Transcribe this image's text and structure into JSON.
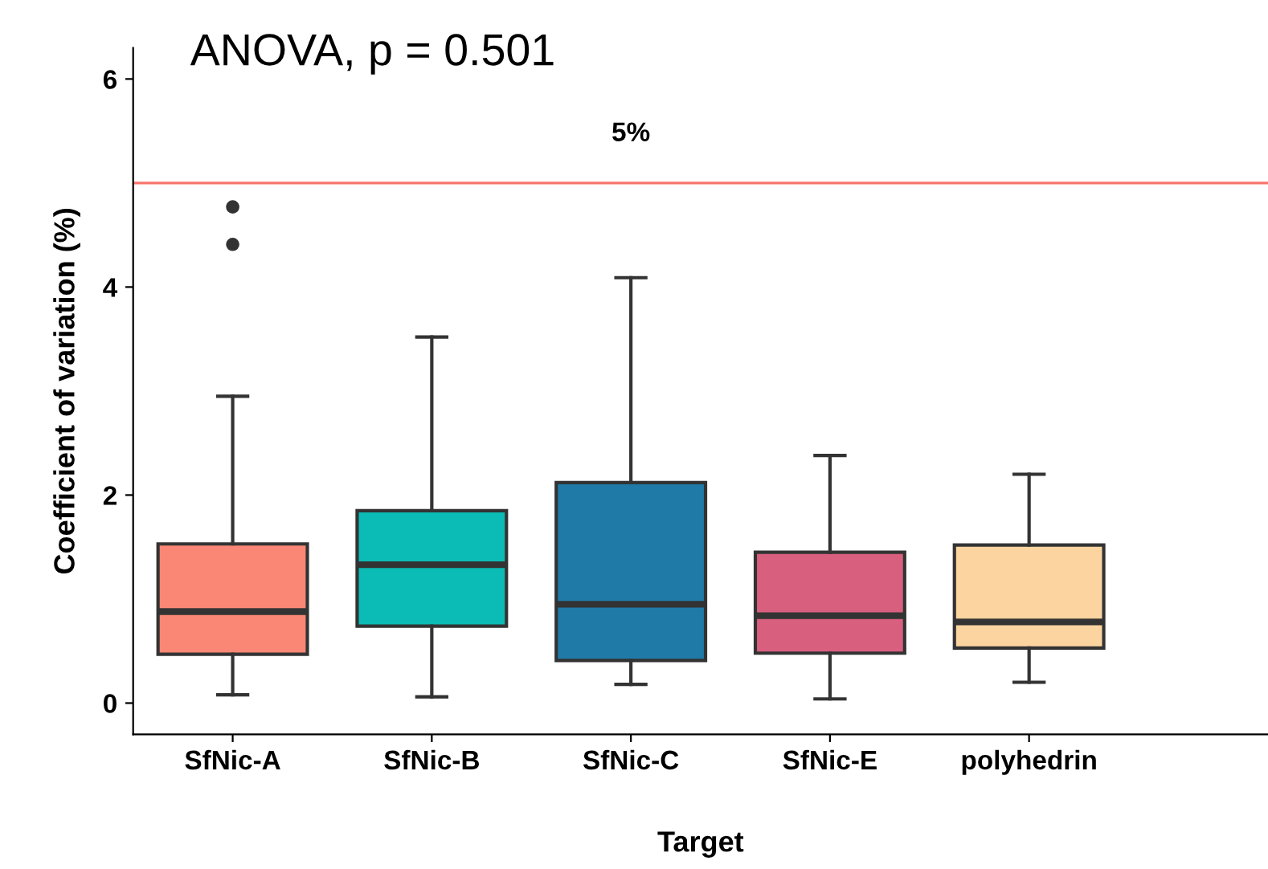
{
  "chart_data": {
    "type": "box",
    "title": "ANOVA, p = 0.501",
    "xlabel": "Target",
    "ylabel": "Coefficient of variation (%)",
    "categories": [
      "SfNic-A",
      "SfNic-B",
      "SfNic-C",
      "SfNic-E",
      "polyhedrin"
    ],
    "colors": [
      "#fa8775",
      "#0abcb5",
      "#1f7aa8",
      "#d95f7f",
      "#fbd4a0"
    ],
    "boxes": [
      {
        "low": 0.08,
        "q1": 0.47,
        "median": 0.88,
        "q3": 1.53,
        "high": 2.95,
        "outliers": [
          4.41,
          4.77
        ]
      },
      {
        "low": 0.06,
        "q1": 0.74,
        "median": 1.33,
        "q3": 1.85,
        "high": 3.52
      },
      {
        "low": 0.18,
        "q1": 0.41,
        "median": 0.95,
        "q3": 2.12,
        "high": 4.09
      },
      {
        "low": 0.04,
        "q1": 0.48,
        "median": 0.84,
        "q3": 1.45,
        "high": 2.38
      },
      {
        "low": 0.2,
        "q1": 0.53,
        "median": 0.78,
        "q3": 1.52,
        "high": 2.2
      }
    ],
    "ref_lines": [
      {
        "axis": "y",
        "value": 5,
        "label": "5%",
        "color": "#f8766d"
      }
    ],
    "ylim": [
      -0.3,
      6.3
    ],
    "yticks": [
      0,
      2,
      4,
      6
    ],
    "grid": false,
    "legend": false
  }
}
